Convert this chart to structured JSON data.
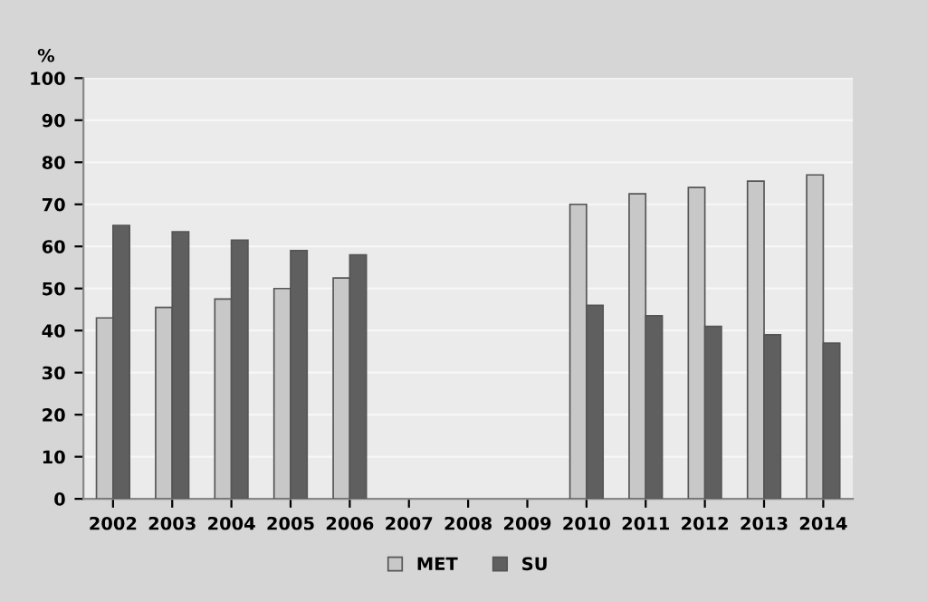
{
  "chart_data": {
    "type": "bar",
    "ylabel": "%",
    "categories": [
      "2002",
      "2003",
      "2004",
      "2005",
      "2006",
      "2007",
      "2008",
      "2009",
      "2010",
      "2011",
      "2012",
      "2013",
      "2014"
    ],
    "series": [
      {
        "name": "MET",
        "color": "#c8c8c8",
        "values": [
          43,
          45.5,
          47.5,
          50,
          52.5,
          null,
          null,
          null,
          70,
          72.5,
          74,
          75.5,
          77
        ]
      },
      {
        "name": "SU",
        "color": "#5f5f5f",
        "values": [
          65,
          63.5,
          61.5,
          59,
          58,
          null,
          null,
          null,
          46,
          43.5,
          41,
          39,
          37
        ]
      }
    ],
    "ylim": [
      0,
      100
    ],
    "yticks": [
      0,
      10,
      20,
      30,
      40,
      50,
      60,
      70,
      80,
      90,
      100
    ],
    "grid": "y",
    "legend": "bottom"
  }
}
